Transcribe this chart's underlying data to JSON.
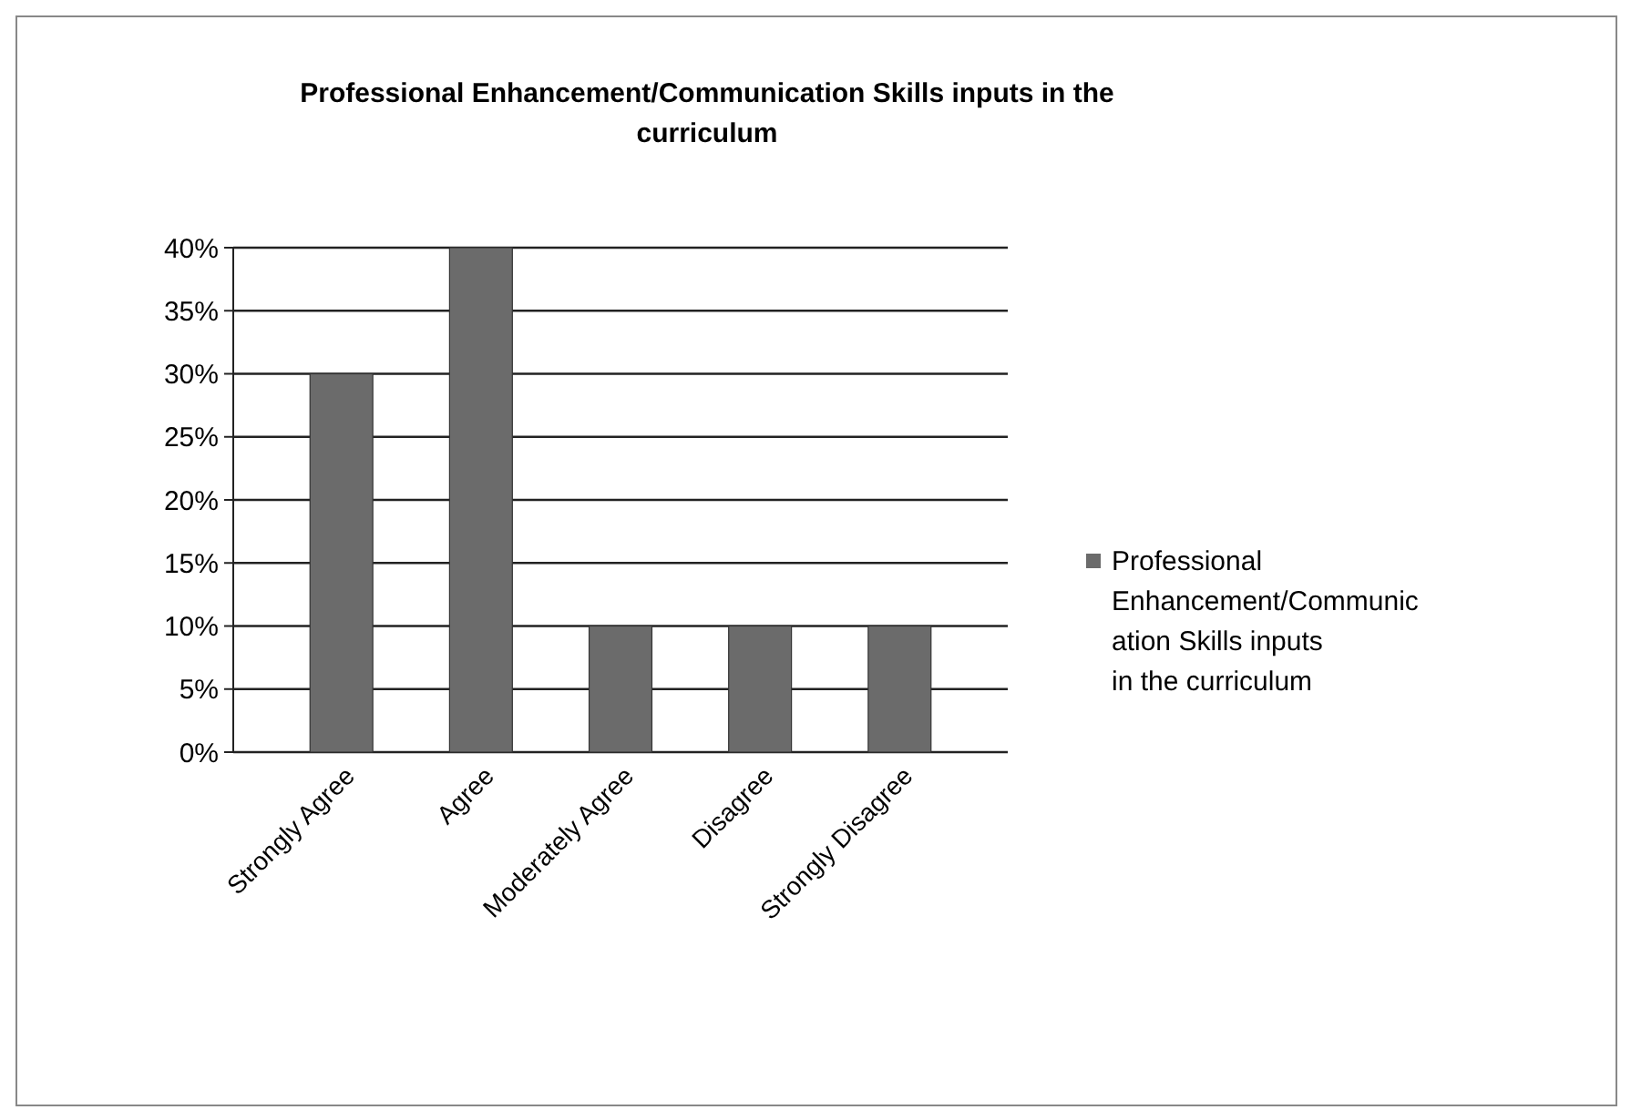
{
  "chart_data": {
    "type": "bar",
    "title": "Professional Enhancement/Communication Skills inputs in the curriculum",
    "categories": [
      "Strongly Agree",
      "Agree",
      "Moderately Agree",
      "Disagree",
      "Strongly Disagree"
    ],
    "series": [
      {
        "name": "Professional Enhancement/Communication Skills inputs in the curriculum",
        "color": "#6b6b6b",
        "values": [
          30,
          40,
          10,
          10,
          10
        ]
      }
    ],
    "ylim": [
      0,
      40
    ],
    "yticks": [
      {
        "value": 0,
        "label": "0%"
      },
      {
        "value": 5,
        "label": "5%"
      },
      {
        "value": 10,
        "label": "10%"
      },
      {
        "value": 15,
        "label": "15%"
      },
      {
        "value": 20,
        "label": "20%"
      },
      {
        "value": 25,
        "label": "25%"
      },
      {
        "value": 30,
        "label": "30%"
      },
      {
        "value": 35,
        "label": "35%"
      },
      {
        "value": 40,
        "label": "40%"
      }
    ],
    "grid": "y",
    "legend": "right"
  }
}
